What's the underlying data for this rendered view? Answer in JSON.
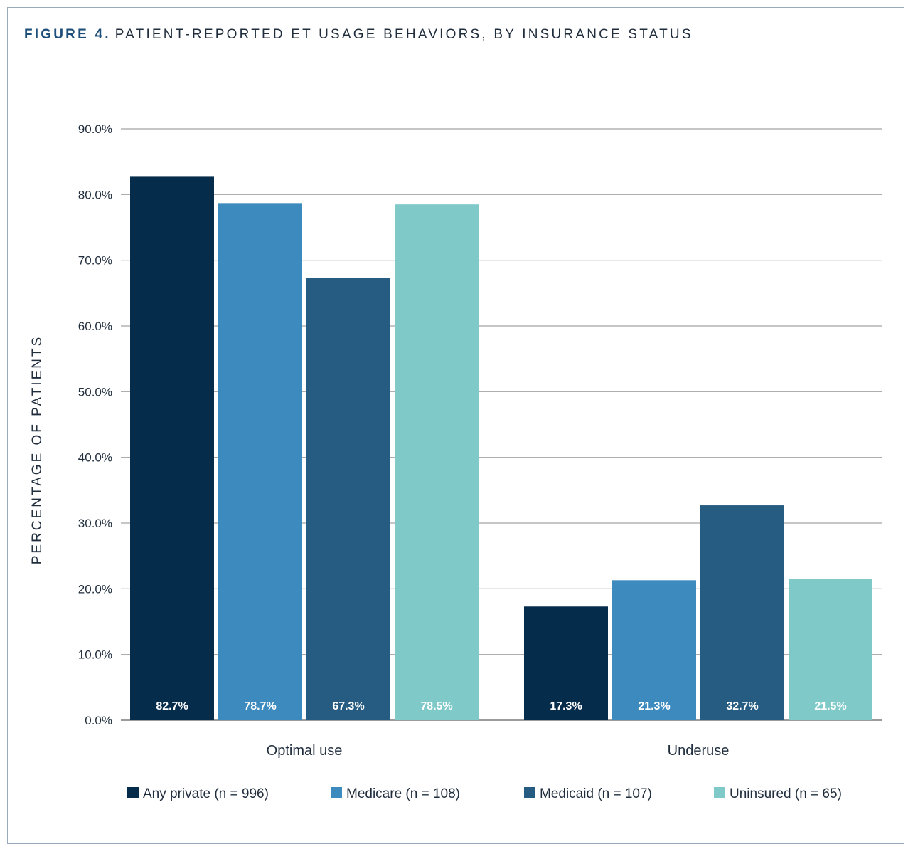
{
  "figure": {
    "label": "FIGURE 4.",
    "title": "PATIENT-REPORTED ET USAGE BEHAVIORS, BY INSURANCE STATUS"
  },
  "colors": {
    "any_private": "#062c4c",
    "medicare": "#3d8bbe",
    "medicaid": "#265c82",
    "uninsured": "#7fc9c9",
    "grid": "#a3a3a3",
    "text": "#1f2d3d"
  },
  "chart_data": {
    "type": "bar",
    "title": "PATIENT-REPORTED ET USAGE BEHAVIORS, BY INSURANCE STATUS",
    "xlabel": "",
    "ylabel": "PERCENTAGE OF PATIENTS",
    "ylim": [
      0,
      90
    ],
    "grid": true,
    "legend_position": "bottom",
    "yticks": [
      {
        "value": 0,
        "label": "0.0%"
      },
      {
        "value": 10,
        "label": "10.0%"
      },
      {
        "value": 20,
        "label": "20.0%"
      },
      {
        "value": 30,
        "label": "30.0%"
      },
      {
        "value": 40,
        "label": "40.0%"
      },
      {
        "value": 50,
        "label": "50.0%"
      },
      {
        "value": 60,
        "label": "60.0%"
      },
      {
        "value": 70,
        "label": "70.0%"
      },
      {
        "value": 80,
        "label": "80.0%"
      },
      {
        "value": 90,
        "label": "90.0%"
      }
    ],
    "categories": [
      "Optimal use",
      "Underuse"
    ],
    "series": [
      {
        "key": "any_private",
        "name": "Any private (n = 996)",
        "values": [
          82.7,
          17.3
        ],
        "labels": [
          "82.7%",
          "17.3%"
        ]
      },
      {
        "key": "medicare",
        "name": "Medicare (n = 108)",
        "values": [
          78.7,
          21.3
        ],
        "labels": [
          "78.7%",
          "21.3%"
        ]
      },
      {
        "key": "medicaid",
        "name": "Medicaid (n = 107)",
        "values": [
          67.3,
          32.7
        ],
        "labels": [
          "67.3%",
          "32.7%"
        ]
      },
      {
        "key": "uninsured",
        "name": "Uninsured (n = 65)",
        "values": [
          78.5,
          21.5
        ],
        "labels": [
          "78.5%",
          "21.5%"
        ]
      }
    ]
  }
}
